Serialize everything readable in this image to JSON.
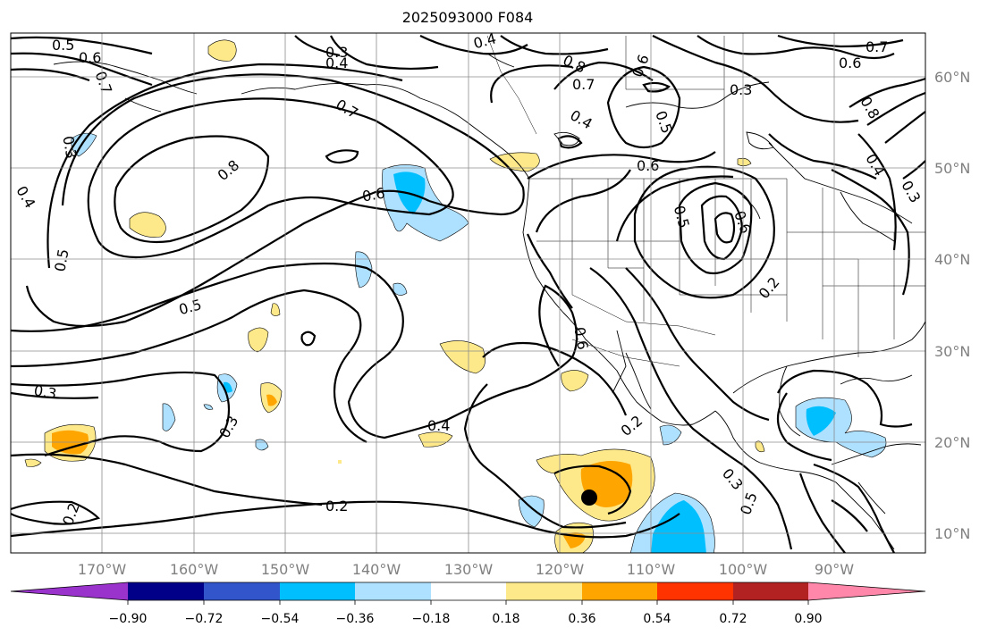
{
  "title": "2025093000 F084",
  "map": {
    "projection": "lat-lon",
    "lon_range": [
      -180,
      -80
    ],
    "lat_range": [
      8,
      65
    ],
    "grid": true,
    "lon_ticks": [
      "170°W",
      "160°W",
      "150°W",
      "140°W",
      "130°W",
      "120°W",
      "110°W",
      "100°W",
      "90°W"
    ],
    "lat_ticks": [
      "60°N",
      "50°N",
      "40°N",
      "30°N",
      "20°N",
      "10°N"
    ],
    "contour_labels": [
      "0.5",
      "0.6",
      "0.7",
      "0.3",
      "0.4",
      "0.4",
      "0.8",
      "0.7",
      "0.6",
      "0.7",
      "0.6",
      "0.3",
      "0.7",
      "0.8",
      "0.5",
      "0.4",
      "0.6",
      "0.6",
      "0.4",
      "0.3",
      "0.8",
      "0.5",
      "0.6",
      "0.5",
      "0.2",
      "0.5",
      "0.3",
      "0.4",
      "0.3",
      "0.2",
      "0.2",
      "0.2",
      "0.3",
      "0.5",
      "0.6",
      "0.4",
      "0.3"
    ],
    "marker": {
      "label": "storm-position",
      "lon": -116.5,
      "lat": 14
    }
  },
  "colorbar": {
    "colors": [
      "#9933cc",
      "#000088",
      "#3355cc",
      "#00bfff",
      "#aee0ff",
      "#ffffff",
      "#fde98a",
      "#ffa500",
      "#ff3300",
      "#b22222",
      "#ff88aa"
    ],
    "tick_labels": [
      "−0.90",
      "−0.72",
      "−0.54",
      "−0.36",
      "−0.18",
      "0.18",
      "0.36",
      "0.54",
      "0.72",
      "0.90"
    ]
  }
}
